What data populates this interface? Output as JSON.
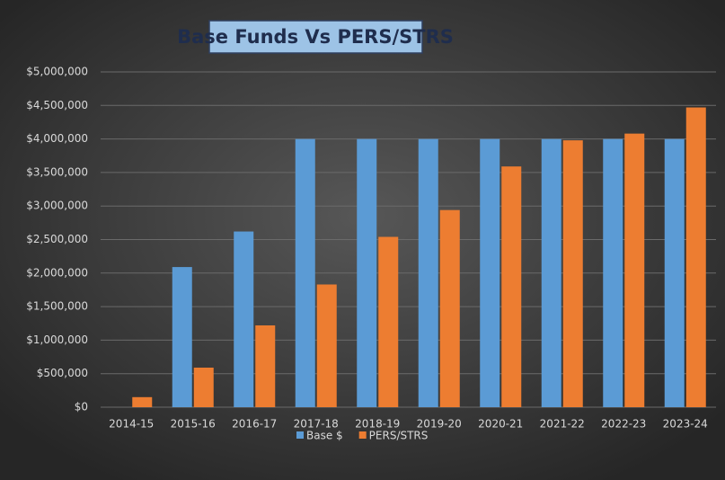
{
  "chart_data": {
    "type": "bar",
    "title": "Base Funds Vs PERS/STRS",
    "categories": [
      "2014-15",
      "2015-16",
      "2016-17",
      "2017-18",
      "2018-19",
      "2019-20",
      "2020-21",
      "2021-22",
      "2022-23",
      "2023-24"
    ],
    "series": [
      {
        "name": "Base $",
        "color": "#5b9bd5",
        "values": [
          0,
          2090000,
          2620000,
          4000000,
          4000000,
          4000000,
          4000000,
          4000000,
          4000000,
          4000000
        ]
      },
      {
        "name": "PERS/STRS",
        "color": "#ed7d31",
        "values": [
          150000,
          590000,
          1220000,
          1830000,
          2540000,
          2940000,
          3590000,
          3980000,
          4080000,
          4470000
        ]
      }
    ],
    "ylim": [
      0,
      5000000
    ],
    "yticks": [
      {
        "value": 0,
        "label": "$0"
      },
      {
        "value": 500000,
        "label": "$500,000"
      },
      {
        "value": 1000000,
        "label": "$1,000,000"
      },
      {
        "value": 1500000,
        "label": "$1,500,000"
      },
      {
        "value": 2000000,
        "label": "$2,000,000"
      },
      {
        "value": 2500000,
        "label": "$2,500,000"
      },
      {
        "value": 3000000,
        "label": "$3,000,000"
      },
      {
        "value": 3500000,
        "label": "$3,500,000"
      },
      {
        "value": 4000000,
        "label": "$4,000,000"
      },
      {
        "value": 4500000,
        "label": "$4,500,000"
      },
      {
        "value": 5000000,
        "label": "$5,000,000"
      }
    ],
    "grid": true,
    "legend": "bottom"
  }
}
